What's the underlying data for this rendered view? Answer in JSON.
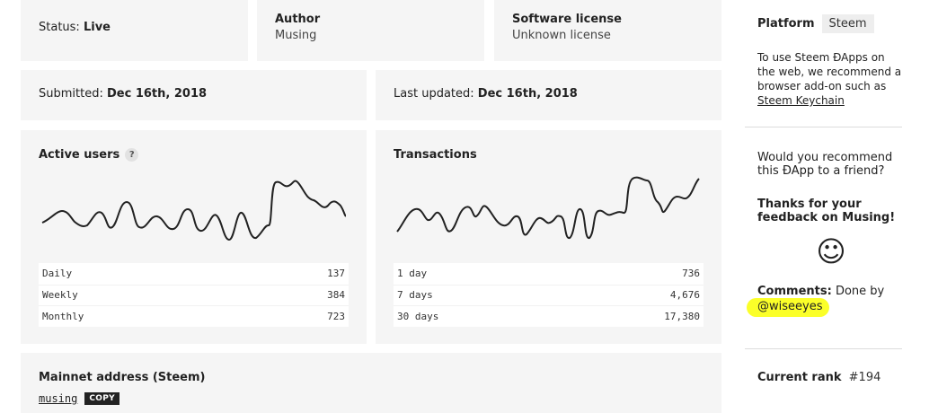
{
  "status": {
    "label": "Status:",
    "value": "Live"
  },
  "author": {
    "label": "Author",
    "value": "Musing"
  },
  "license": {
    "label": "Software license",
    "value": "Unknown license"
  },
  "submitted": {
    "label": "Submitted:",
    "value": "Dec 16th, 2018"
  },
  "updated": {
    "label": "Last updated:",
    "value": "Dec 16th, 2018"
  },
  "active_users": {
    "title": "Active users",
    "help": "?",
    "rows": [
      {
        "label": "Daily",
        "value": "137"
      },
      {
        "label": "Weekly",
        "value": "384"
      },
      {
        "label": "Monthly",
        "value": "723"
      }
    ]
  },
  "transactions": {
    "title": "Transactions",
    "rows": [
      {
        "label": "1 day",
        "value": "736"
      },
      {
        "label": "7 days",
        "value": "4,676"
      },
      {
        "label": "30 days",
        "value": "17,380"
      }
    ]
  },
  "mainnet": {
    "title": "Mainnet address (Steem)",
    "address": "musing",
    "copy_label": "COPY"
  },
  "sidebar": {
    "platform_label": "Platform",
    "platform_value": "Steem",
    "platform_note": "To use Steem ĐApps on the web, we recommend a browser add-on such as",
    "keychain_link": "Steem Keychain",
    "recommend_question": "Would you recommend this ĐApp to a friend?",
    "thanks": "Thanks for your feedback on Musing!",
    "smiley": "☺",
    "comments_label": "Comments:",
    "comments_text": "Done by",
    "comments_user": "@wiseeyes",
    "rank_label": "Current rank",
    "rank_value": "#194"
  },
  "colors": {
    "card_bg": "#f5f5f5",
    "highlight": "#fbff29",
    "text": "#222222"
  }
}
